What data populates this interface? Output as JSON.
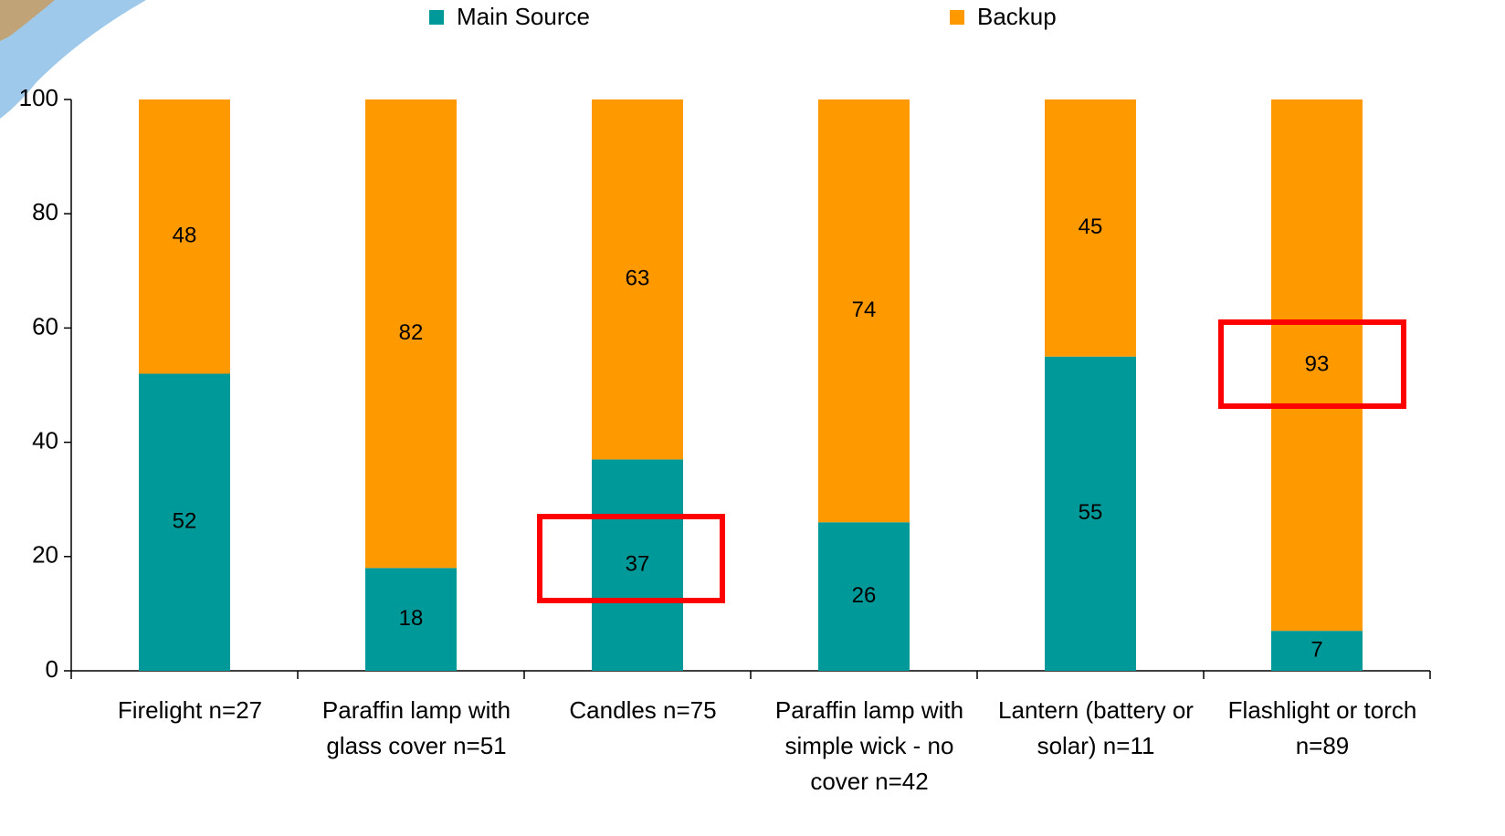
{
  "chart_data": {
    "type": "stacked_bar",
    "categories": [
      "Firelight n=27",
      "Paraffin lamp with glass cover n=51",
      "Candles n=75",
      "Paraffin lamp with simple wick - no cover n=42",
      "Lantern (battery or solar) n=11",
      "Flashlight or torch n=89"
    ],
    "series": [
      {
        "name": "Main Source",
        "color": "#009999",
        "values": [
          52,
          18,
          37,
          26,
          55,
          7
        ]
      },
      {
        "name": "Backup",
        "color": "#ff9900",
        "values": [
          48,
          82,
          63,
          74,
          45,
          93
        ]
      }
    ],
    "ylim": [
      0,
      100
    ],
    "yticks": [
      0,
      20,
      40,
      60,
      80,
      100
    ]
  }
}
